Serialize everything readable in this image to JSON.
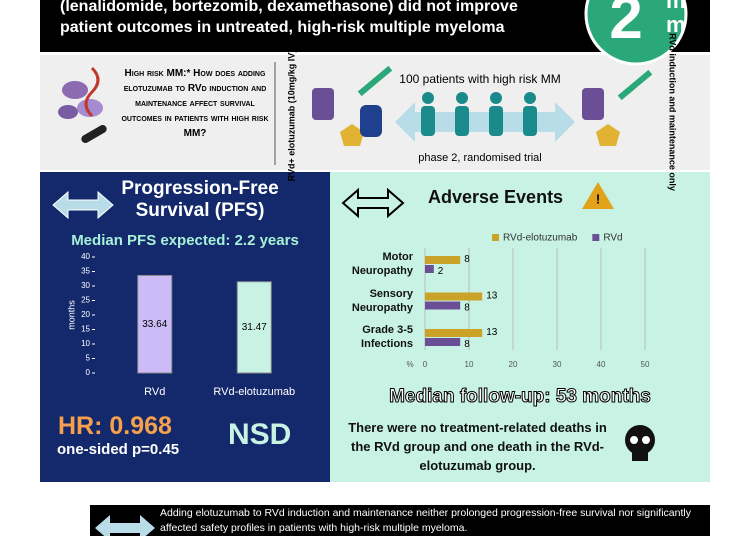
{
  "header": {
    "title": "(lenalidomide, bortezomib, dexamethasone) did not improve patient outcomes in untreated, high-risk multiple myeloma"
  },
  "logo": {
    "digit": "2",
    "top": "m",
    "bottom": "m"
  },
  "question": "High risk MM:* How does adding elotuzumab to RVd induction and maintenance affect survival outcomes in patients with high risk MM?",
  "design": {
    "arm_1": "RVd+ elotuzumab (10mg/kg IV)**",
    "population": "100 patients with high risk MM",
    "trial": "phase 2, randomised trial",
    "arm_2": "RVd induction and maintenance only"
  },
  "chart_data": [
    {
      "type": "bar",
      "title": "Progression-Free Survival (PFS)",
      "subtitle": "Median PFS expected: 2.2 years",
      "y_label": "months",
      "categories": [
        "RVd",
        "RVd-elotuzumab"
      ],
      "values": [
        33.64,
        31.47
      ],
      "colors": [
        "#cdbbf8",
        "#c8f3e4"
      ],
      "ylim": [
        0,
        40
      ],
      "yticks": [
        0,
        5,
        10,
        15,
        20,
        25,
        30,
        35,
        40
      ],
      "grid": false
    },
    {
      "type": "barh",
      "title": "Adverse Events",
      "x_label": "%",
      "categories": [
        "Motor Neuropathy",
        "Sensory Neuropathy",
        "Grade 3-5 Infections"
      ],
      "series": [
        {
          "name": "RVd-elotuzumab",
          "color": "#c9a227",
          "values": [
            8,
            13,
            13
          ]
        },
        {
          "name": "RVd",
          "color": "#6b4f96",
          "values": [
            2,
            8,
            8
          ]
        }
      ],
      "xlim": [
        0,
        50
      ],
      "xticks": [
        0,
        10,
        20,
        30,
        40,
        50
      ],
      "grid": true,
      "legend": "top"
    }
  ],
  "stats": {
    "hr": "HR: 0.968",
    "p": "one-sided p=0.45",
    "nsd": "NSD"
  },
  "follow_up": "Median follow-up: 53 months",
  "deaths": "There were no treatment-related deaths in the RVd group and one death in the RVd-elotuzumab group.",
  "conclusion": "Adding elotuzumab to RVd induction and maintenance neither prolonged progression-free survival nor significantly affected safety profiles in patients with high-risk multiple myeloma."
}
